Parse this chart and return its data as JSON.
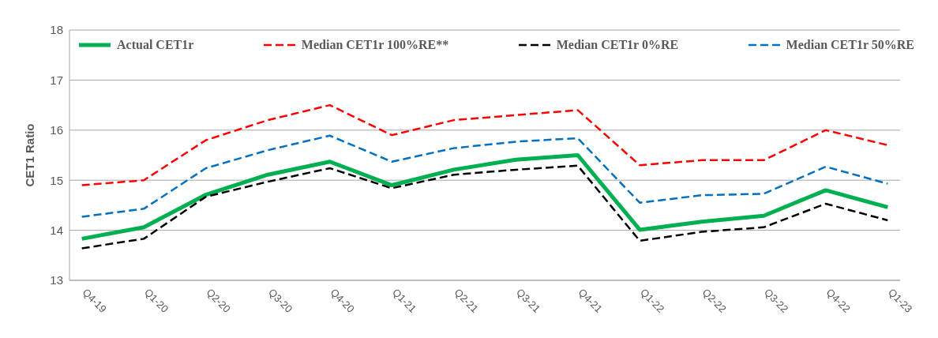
{
  "chart_data": {
    "type": "line",
    "ylabel": "CET1 Ratio",
    "categories": [
      "Q4-19",
      "Q1-20",
      "Q2-20",
      "Q3-20",
      "Q4-20",
      "Q1-21",
      "Q2-21",
      "Q3-21",
      "Q4-21",
      "Q1-22",
      "Q2-22",
      "Q3-22",
      "Q4-22",
      "Q1-23"
    ],
    "series": [
      {
        "name": "Actual CET1r",
        "color": "#00b050",
        "line_style": "solid",
        "values": [
          13.83,
          14.06,
          14.71,
          15.11,
          15.37,
          14.9,
          15.21,
          15.41,
          15.5,
          14.01,
          14.17,
          14.29,
          14.8,
          14.46
        ]
      },
      {
        "name": "Median CET1r 100%RE**",
        "color": "#ff0000",
        "line_style": "dashed",
        "values": [
          14.9,
          15.0,
          15.8,
          16.2,
          16.5,
          15.9,
          16.2,
          16.3,
          16.4,
          15.3,
          15.4,
          15.4,
          16.0,
          15.7
        ]
      },
      {
        "name": "Median CET1r 0%RE",
        "color": "#000000",
        "line_style": "dashed",
        "values": [
          13.64,
          13.83,
          14.67,
          14.97,
          15.24,
          14.84,
          15.11,
          15.21,
          15.29,
          13.79,
          13.97,
          14.06,
          14.53,
          14.2
        ]
      },
      {
        "name": "Median CET1r 50%RE",
        "color": "#0070c0",
        "line_style": "dashed",
        "values": [
          14.27,
          14.43,
          15.24,
          15.6,
          15.89,
          15.37,
          15.64,
          15.77,
          15.84,
          14.55,
          14.7,
          14.73,
          15.27,
          14.93
        ]
      }
    ],
    "ylim": [
      13,
      18
    ],
    "yticks": [
      13,
      14,
      15,
      16,
      17,
      18
    ],
    "grid": "y",
    "legend": "top",
    "marker": "none"
  }
}
